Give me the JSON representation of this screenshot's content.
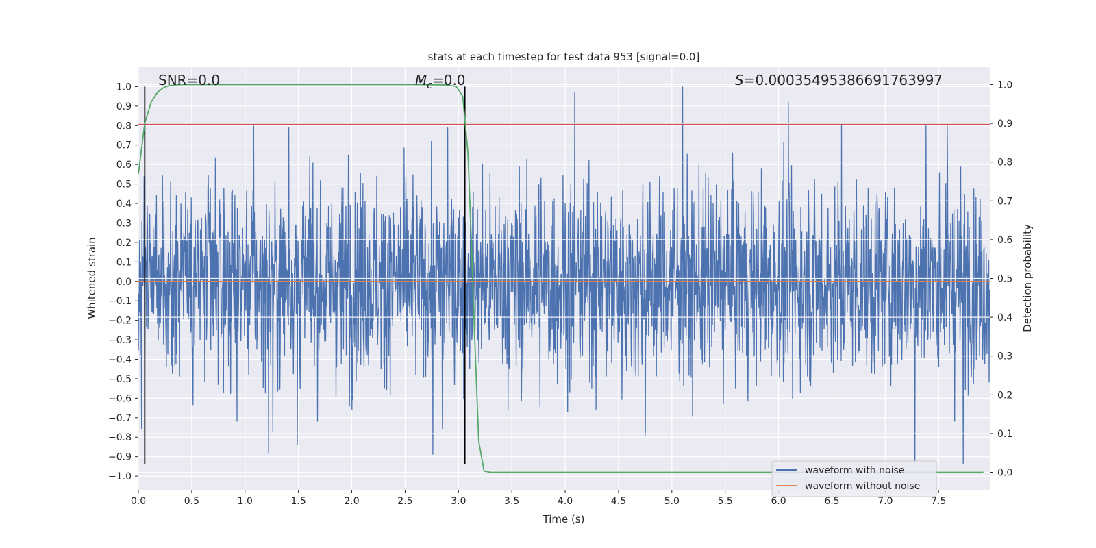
{
  "chart_data": {
    "type": "line",
    "title": "stats at each timestep for test data 953 [signal=0.0]",
    "xlabel": "Time (s)",
    "ylabel": "Whitened strain",
    "ylabel_right": "Detection probability",
    "xlim": [
      0.0,
      7.98
    ],
    "ylim": [
      -1.07,
      1.1
    ],
    "ylim_right": [
      -0.045,
      1.045
    ],
    "x_ticks": [
      0.0,
      0.5,
      1.0,
      1.5,
      2.0,
      2.5,
      3.0,
      3.5,
      4.0,
      4.5,
      5.0,
      5.5,
      6.0,
      6.5,
      7.0,
      7.5
    ],
    "x_tick_labels": [
      "0.0",
      "0.5",
      "1.0",
      "1.5",
      "2.0",
      "2.5",
      "3.0",
      "3.5",
      "4.0",
      "4.5",
      "5.0",
      "5.5",
      "6.0",
      "6.5",
      "7.0",
      "7.5"
    ],
    "y_ticks": [
      1.0,
      0.9,
      0.8,
      0.7,
      0.6,
      0.5,
      0.4,
      0.3,
      0.2,
      0.1,
      0.0,
      -0.1,
      -0.2,
      -0.3,
      -0.4,
      -0.5,
      -0.6,
      -0.7,
      -0.8,
      -0.9,
      -1.0
    ],
    "y_tick_labels": [
      "1.0",
      "0.9",
      "0.8",
      "0.7",
      "0.6",
      "0.5",
      "0.4",
      "0.3",
      "0.2",
      "0.1",
      "0.0",
      "−0.1",
      "−0.2",
      "−0.3",
      "−0.4",
      "−0.5",
      "−0.6",
      "−0.7",
      "−0.8",
      "−0.9",
      "−1.0"
    ],
    "y_right_ticks": [
      1.0,
      0.9,
      0.8,
      0.7,
      0.6,
      0.5,
      0.4,
      0.3,
      0.2,
      0.1,
      0.0
    ],
    "y_right_tick_labels": [
      "1.0",
      "0.9",
      "0.8",
      "0.7",
      "0.6",
      "0.5",
      "0.4",
      "0.3",
      "0.2",
      "0.1",
      "0.0"
    ],
    "grid": true,
    "legend_position": "lower-right",
    "annotations": [
      {
        "id": "snr",
        "text": "SNR=0.0"
      },
      {
        "id": "mc",
        "text_symbol": "M",
        "text_subscript": "c",
        "text_rest": "=0.0"
      },
      {
        "id": "s",
        "text_symbol": "S",
        "text_rest": "=0.00035495386691763997"
      }
    ],
    "vertical_markers_x": [
      0.06,
      3.06
    ],
    "series": [
      {
        "name": "waveform with noise",
        "color": "#4c72b0",
        "axis": "left",
        "kind": "noise",
        "envelope_typical": 0.45,
        "peaks": [
          [
            0.03,
            -0.76
          ],
          [
            0.06,
            -0.59
          ],
          [
            1.08,
            0.8
          ],
          [
            1.22,
            -0.88
          ],
          [
            1.26,
            -0.77
          ],
          [
            1.41,
            0.79
          ],
          [
            1.49,
            -0.84
          ],
          [
            1.97,
            0.65
          ],
          [
            2.76,
            -0.89
          ],
          [
            2.85,
            -0.76
          ],
          [
            2.9,
            0.79
          ],
          [
            3.06,
            0.8
          ],
          [
            4.09,
            0.97
          ],
          [
            4.75,
            -0.79
          ],
          [
            5.1,
            1.0
          ],
          [
            6.09,
            0.92
          ],
          [
            6.59,
            0.81
          ],
          [
            7.28,
            -0.93
          ],
          [
            7.38,
            0.8
          ],
          [
            7.58,
            0.81
          ],
          [
            7.73,
            -0.94
          ]
        ]
      },
      {
        "name": "waveform without noise",
        "color": "#dd8452",
        "axis": "left",
        "kind": "constant",
        "value": 0.0
      },
      {
        "name": "",
        "color": "#c44e52",
        "axis": "left",
        "kind": "constant",
        "value": 0.806,
        "legend": false
      },
      {
        "name": "",
        "color": "#55a868",
        "axis": "right",
        "kind": "line",
        "legend": false,
        "x": [
          0.0,
          0.06,
          0.12,
          0.18,
          0.24,
          0.3,
          0.4,
          0.6,
          1.0,
          2.0,
          2.6,
          2.9,
          2.98,
          3.04,
          3.09,
          3.12,
          3.15,
          3.19,
          3.24,
          3.3,
          3.5,
          4.0,
          5.0,
          6.0,
          7.0,
          7.92
        ],
        "y": [
          0.77,
          0.9,
          0.955,
          0.98,
          0.993,
          0.998,
          1.0,
          1.0,
          1.0,
          1.0,
          1.0,
          0.999,
          0.995,
          0.97,
          0.82,
          0.6,
          0.36,
          0.08,
          0.003,
          0.0,
          0.0,
          0.0,
          0.0,
          0.0,
          0.0,
          0.0
        ]
      }
    ]
  }
}
